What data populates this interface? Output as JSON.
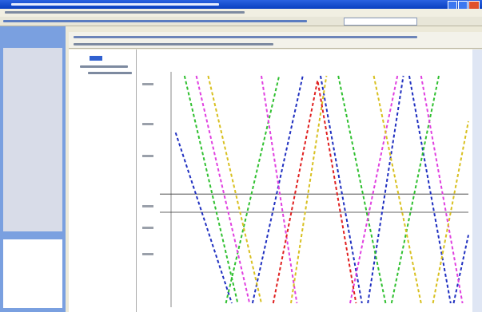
{
  "chart_data": {
    "type": "line",
    "xlim": [
      0,
      100
    ],
    "ylim": [
      0,
      100
    ],
    "hlines": [
      48,
      40
    ],
    "series": [
      {
        "color": "#2030c0",
        "x": [
          1,
          20
        ],
        "values": [
          75,
          0
        ]
      },
      {
        "color": "#2030c0",
        "x": [
          27,
          44
        ],
        "values": [
          0,
          100
        ]
      },
      {
        "color": "#2030c0",
        "x": [
          50,
          64
        ],
        "values": [
          100,
          0
        ]
      },
      {
        "color": "#2030c0",
        "x": [
          66,
          78
        ],
        "values": [
          0,
          100
        ]
      },
      {
        "color": "#2030c0",
        "x": [
          80,
          94
        ],
        "values": [
          100,
          0
        ]
      },
      {
        "color": "#2030c0",
        "x": [
          95,
          100
        ],
        "values": [
          0,
          30
        ]
      },
      {
        "color": "#30c030",
        "x": [
          4,
          22
        ],
        "values": [
          100,
          0
        ]
      },
      {
        "color": "#30c030",
        "x": [
          18,
          36
        ],
        "values": [
          0,
          100
        ]
      },
      {
        "color": "#30c030",
        "x": [
          56,
          72
        ],
        "values": [
          100,
          0
        ]
      },
      {
        "color": "#30c030",
        "x": [
          74,
          90
        ],
        "values": [
          0,
          100
        ]
      },
      {
        "color": "#e040e0",
        "x": [
          8,
          26
        ],
        "values": [
          100,
          0
        ]
      },
      {
        "color": "#e040e0",
        "x": [
          30,
          42
        ],
        "values": [
          100,
          0
        ]
      },
      {
        "color": "#e040e0",
        "x": [
          60,
          76
        ],
        "values": [
          0,
          100
        ]
      },
      {
        "color": "#e040e0",
        "x": [
          84,
          98
        ],
        "values": [
          100,
          0
        ]
      },
      {
        "color": "#d8c020",
        "x": [
          12,
          30
        ],
        "values": [
          100,
          0
        ]
      },
      {
        "color": "#d8c020",
        "x": [
          40,
          52
        ],
        "values": [
          0,
          100
        ]
      },
      {
        "color": "#d8c020",
        "x": [
          68,
          84
        ],
        "values": [
          100,
          0
        ]
      },
      {
        "color": "#d8c020",
        "x": [
          88,
          100
        ],
        "values": [
          0,
          80
        ]
      },
      {
        "color": "#e02020",
        "x": [
          34,
          49,
          62
        ],
        "values": [
          0,
          98,
          0
        ]
      }
    ]
  }
}
